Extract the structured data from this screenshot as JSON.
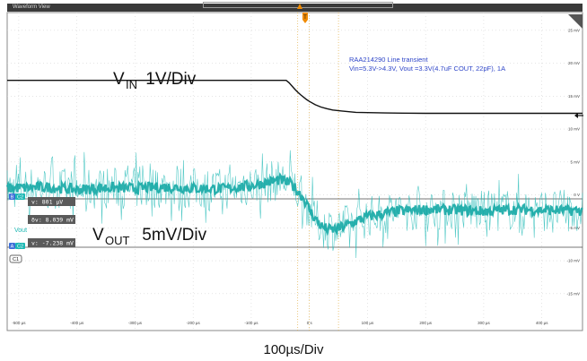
{
  "window": {
    "title": "Waveform View"
  },
  "annotation": {
    "line1": "RAA214290 Line transient",
    "line2": "Vin=5.3V->4.3V, Vout =3.3V(4.7uF COUT, 22pF), 1A"
  },
  "labels": {
    "vin_prefix": "V",
    "vin_sub": "IN",
    "vin_scale": " 1V/Div",
    "vout_prefix": "V",
    "vout_sub": "OUT",
    "vout_scale": " 5mV/Div",
    "vout_channel": "Vout",
    "timebase": "100µs/Div"
  },
  "cursor_readouts": {
    "readout1": "v: 801 µV",
    "readout2": "δv: 8.039 mV",
    "readout3": "v: -7.238 mV"
  },
  "badges": {
    "b_cursor": "B",
    "c2": "C2",
    "a_cursor": "A",
    "c1": "C1",
    "trigger": "T"
  },
  "chart_data": {
    "type": "line",
    "x_unit": "µs",
    "xlim": [
      -520,
      470
    ],
    "x_ticks": [
      -500,
      -400,
      -300,
      -200,
      -100,
      0,
      100,
      200,
      300,
      400
    ],
    "x_tick_labels": [
      "-500 µs",
      "-400 µs",
      "-300 µs",
      "-200 µs",
      "-100 µs",
      "0 s",
      "100 µs",
      "200 µs",
      "300 µs",
      "400 µs"
    ],
    "right_ticks": [
      25,
      20,
      15,
      10,
      5,
      0,
      -5,
      -10,
      -15
    ],
    "right_tick_labels": [
      "25 mV",
      "20 mV",
      "15 mV",
      "10 mV",
      "5 mV",
      "0 V",
      "-5 mV",
      "-10 mV",
      "-15 mV"
    ],
    "right_axis_unit": "mV",
    "right_axis_range": [
      -20.6,
      27.7
    ],
    "grid": true,
    "series": [
      {
        "name": "VIN",
        "color": "#111111",
        "scale": "1V/Div",
        "x": [
          -520,
          -40,
          -35,
          -30,
          -25,
          -20,
          -15,
          -10,
          -5,
          0,
          10,
          20,
          30,
          40,
          60,
          80,
          100,
          130,
          160,
          200,
          250,
          300,
          350,
          400,
          470
        ],
        "y": [
          5.3,
          5.3,
          5.23,
          5.13,
          5.03,
          4.94,
          4.86,
          4.79,
          4.72,
          4.66,
          4.56,
          4.49,
          4.44,
          4.4,
          4.36,
          4.33,
          4.32,
          4.31,
          4.305,
          4.3,
          4.3,
          4.3,
          4.3,
          4.3,
          4.3
        ],
        "y_unit": "V"
      },
      {
        "name": "Vout",
        "color": "#1cb8b4",
        "scale": "5mV/Div",
        "x": [
          -520,
          -450,
          -400,
          -350,
          -300,
          -250,
          -200,
          -150,
          -100,
          -50,
          -30,
          -10,
          0,
          10,
          20,
          30,
          40,
          50,
          75,
          100,
          150,
          200,
          250,
          300,
          350,
          400,
          470
        ],
        "y": [
          1.0,
          1.2,
          0.8,
          1.1,
          1.0,
          1.2,
          1.0,
          0.9,
          1.4,
          2.3,
          1.6,
          -0.5,
          -2.2,
          -3.6,
          -4.7,
          -5.2,
          -5.3,
          -5.1,
          -4.2,
          -3.3,
          -2.5,
          -2.2,
          -2.3,
          -2.5,
          -2.2,
          -2.3,
          -2.4
        ],
        "y_unit": "mV"
      }
    ]
  }
}
